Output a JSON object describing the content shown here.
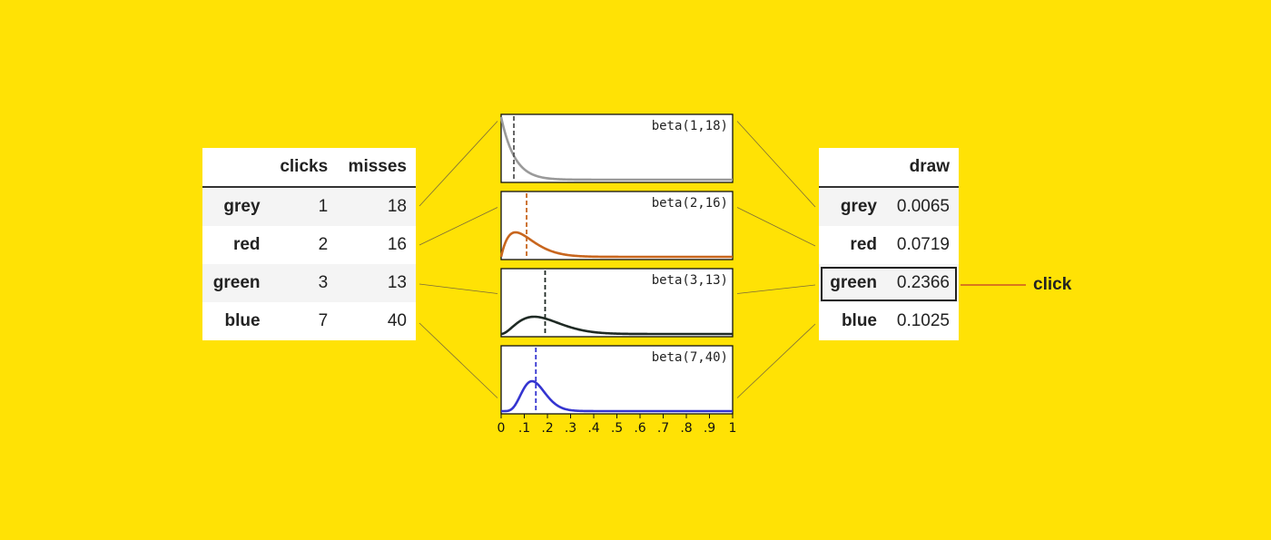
{
  "left_table": {
    "columns": [
      "",
      "clicks",
      "misses"
    ],
    "rows": [
      {
        "label": "grey",
        "clicks": "1",
        "misses": "18"
      },
      {
        "label": "red",
        "clicks": "2",
        "misses": "16"
      },
      {
        "label": "green",
        "clicks": "3",
        "misses": "13"
      },
      {
        "label": "blue",
        "clicks": "7",
        "misses": "40"
      }
    ]
  },
  "right_table": {
    "columns": [
      "",
      "draw"
    ],
    "rows": [
      {
        "label": "grey",
        "draw": "0.0065"
      },
      {
        "label": "red",
        "draw": "0.0719"
      },
      {
        "label": "green",
        "draw": "0.2366"
      },
      {
        "label": "blue",
        "draw": "0.1025"
      }
    ],
    "selected": "green"
  },
  "outcome_label": "click",
  "chart_data": {
    "type": "line",
    "xlim": [
      0,
      1
    ],
    "x_ticks": [
      "0",
      ".1",
      ".2",
      ".3",
      ".4",
      ".5",
      ".6",
      ".7",
      ".8",
      ".9",
      "1"
    ],
    "panels": [
      {
        "label": "beta(1,18)",
        "alpha": 1,
        "beta": 18,
        "color": "#9a9a9a",
        "draw": 0.0065,
        "marker_x": 0.055
      },
      {
        "label": "beta(2,16)",
        "alpha": 2,
        "beta": 16,
        "color": "#c8661e",
        "draw": 0.0719,
        "marker_x": 0.11
      },
      {
        "label": "beta(3,13)",
        "alpha": 3,
        "beta": 13,
        "color": "#1f2a24",
        "draw": 0.2366,
        "marker_x": 0.19
      },
      {
        "label": "beta(7,40)",
        "alpha": 7,
        "beta": 40,
        "color": "#3434d0",
        "draw": 0.1025,
        "marker_x": 0.15
      }
    ]
  }
}
